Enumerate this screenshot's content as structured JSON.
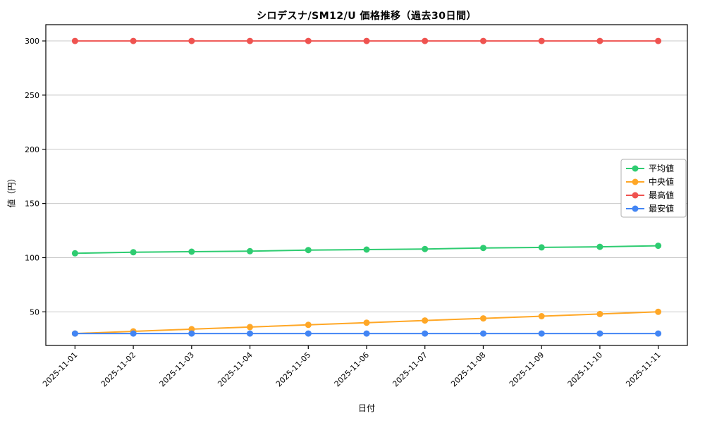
{
  "chart": {
    "title": "シロデスナ/SM12/U 価格推移（過去30日間）",
    "xlabel": "日付",
    "ylabel": "値（円）"
  },
  "chart_data": {
    "type": "line",
    "title": "シロデスナ/SM12/U 価格推移（過去30日間）",
    "xlabel": "日付",
    "ylabel": "値（円）",
    "x": [
      "2025-11-01",
      "2025-11-02",
      "2025-11-03",
      "2025-11-04",
      "2025-11-05",
      "2025-11-06",
      "2025-11-07",
      "2025-11-08",
      "2025-11-09",
      "2025-11-10",
      "2025-11-11"
    ],
    "yticks": [
      50,
      100,
      150,
      200,
      250,
      300
    ],
    "ylim": [
      19,
      315
    ],
    "grid": true,
    "legend_position": "center-right",
    "grid_color": "#c8c8c8",
    "axis_color": "#000000",
    "series": [
      {
        "name": "平均値",
        "color": "#2ecc71",
        "values": [
          104,
          105,
          105.5,
          106,
          107,
          107.5,
          108,
          109,
          109.5,
          110,
          111
        ]
      },
      {
        "name": "中央値",
        "color": "#ffa726",
        "values": [
          30,
          32,
          34,
          36,
          38,
          40,
          42,
          44,
          46,
          48,
          50
        ]
      },
      {
        "name": "最高値",
        "color": "#ef5350",
        "values": [
          300,
          300,
          300,
          300,
          300,
          300,
          300,
          300,
          300,
          300,
          300
        ]
      },
      {
        "name": "最安値",
        "color": "#4285f4",
        "values": [
          30,
          30,
          30,
          30,
          30,
          30,
          30,
          30,
          30,
          30,
          30
        ]
      }
    ]
  }
}
